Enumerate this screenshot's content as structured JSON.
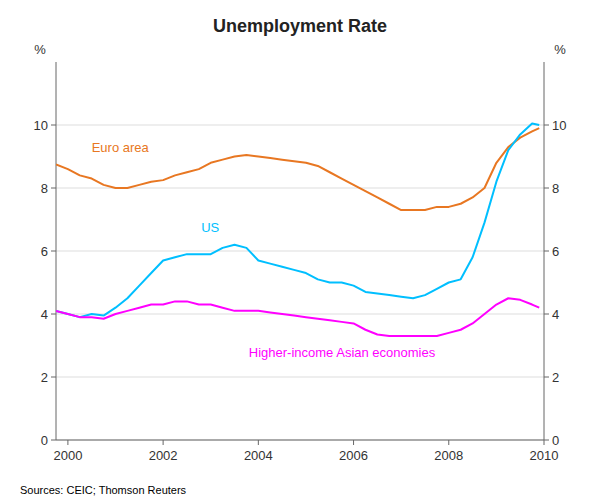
{
  "chart_data": {
    "type": "line",
    "title": "Unemployment Rate",
    "ylabel": "%",
    "y2label": "%",
    "source": "Sources: CEIC; Thomson Reuters",
    "x": [
      1999.75,
      2000.0,
      2000.25,
      2000.5,
      2000.75,
      2001.0,
      2001.25,
      2001.5,
      2001.75,
      2002.0,
      2002.25,
      2002.5,
      2002.75,
      2003.0,
      2003.25,
      2003.5,
      2003.75,
      2004.0,
      2004.25,
      2004.5,
      2004.75,
      2005.0,
      2005.25,
      2005.5,
      2005.75,
      2006.0,
      2006.25,
      2006.5,
      2006.75,
      2007.0,
      2007.25,
      2007.5,
      2007.75,
      2008.0,
      2008.25,
      2008.5,
      2008.75,
      2009.0,
      2009.25,
      2009.5,
      2009.75,
      2009.9
    ],
    "series": [
      {
        "color": "#E87722",
        "values": [
          8.75,
          8.6,
          8.4,
          8.3,
          8.1,
          8.0,
          8.0,
          8.1,
          8.2,
          8.25,
          8.4,
          8.5,
          8.6,
          8.8,
          8.9,
          9.0,
          9.05,
          9.0,
          8.95,
          8.9,
          8.85,
          8.8,
          8.7,
          8.5,
          8.3,
          8.1,
          7.9,
          7.7,
          7.5,
          7.3,
          7.3,
          7.3,
          7.4,
          7.4,
          7.5,
          7.7,
          8.0,
          8.8,
          9.3,
          9.6,
          9.8,
          9.9
        ]
      },
      {
        "color": "#00BFFF",
        "values": [
          4.1,
          4.0,
          3.9,
          4.0,
          3.95,
          4.2,
          4.5,
          4.9,
          5.3,
          5.7,
          5.8,
          5.9,
          5.9,
          5.9,
          6.1,
          6.2,
          6.1,
          5.7,
          5.6,
          5.5,
          5.4,
          5.3,
          5.1,
          5.0,
          5.0,
          4.9,
          4.7,
          4.65,
          4.6,
          4.55,
          4.5,
          4.6,
          4.8,
          5.0,
          5.1,
          5.8,
          6.9,
          8.2,
          9.2,
          9.7,
          10.05,
          10.0
        ]
      },
      {
        "color": "#FF00FF",
        "values": [
          4.1,
          4.0,
          3.9,
          3.9,
          3.85,
          4.0,
          4.1,
          4.2,
          4.3,
          4.3,
          4.4,
          4.4,
          4.3,
          4.3,
          4.2,
          4.1,
          4.1,
          4.1,
          4.05,
          4.0,
          3.95,
          3.9,
          3.85,
          3.8,
          3.75,
          3.7,
          3.5,
          3.35,
          3.3,
          3.3,
          3.3,
          3.3,
          3.3,
          3.4,
          3.5,
          3.7,
          4.0,
          4.3,
          4.5,
          4.45,
          4.3,
          4.2
        ]
      }
    ],
    "annotations": [
      {
        "text": "Euro area",
        "x": 2000.5,
        "y": 9.15,
        "color": "#E87722"
      },
      {
        "text": "US",
        "x": 2002.8,
        "y": 6.6,
        "color": "#00BFFF"
      },
      {
        "text": "Higher-income Asian economies",
        "x": 2003.8,
        "y": 2.65,
        "color": "#FF00FF"
      }
    ],
    "xlim": [
      1999.75,
      2010.0
    ],
    "xticks": [
      2000,
      2002,
      2004,
      2006,
      2008,
      2010
    ],
    "ylim": [
      0,
      12
    ],
    "yticks": [
      0,
      2,
      4,
      6,
      8,
      10
    ],
    "y2lim": [
      0,
      12
    ],
    "y2ticks": [
      0,
      2,
      4,
      6,
      8,
      10
    ],
    "grid": true
  }
}
